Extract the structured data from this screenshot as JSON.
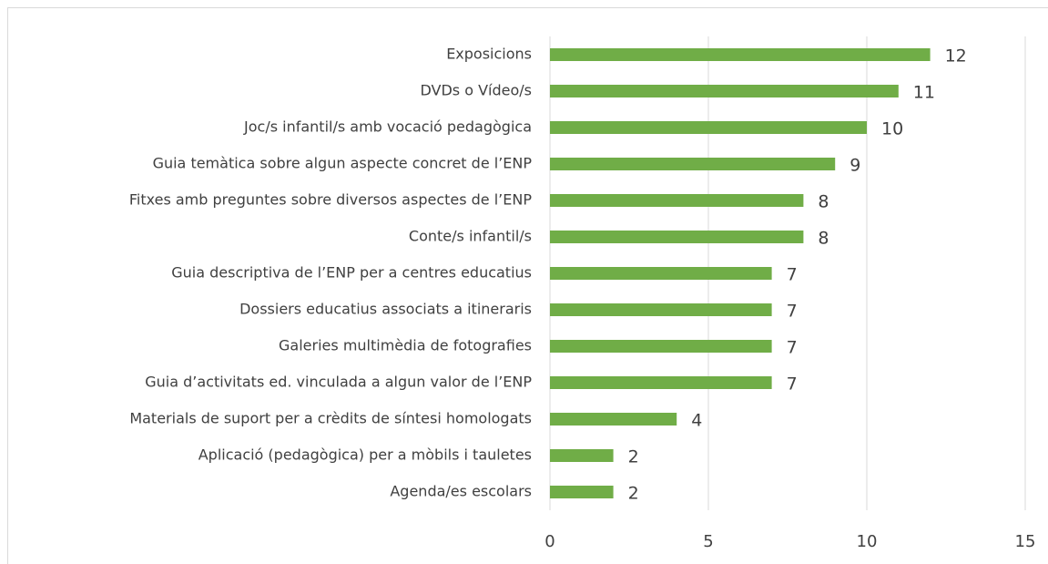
{
  "chart_data": {
    "type": "bar",
    "orientation": "horizontal",
    "categories": [
      "Exposicions",
      "DVDs o Vídeo/s",
      "Joc/s infantil/s amb vocació pedagògica",
      "Guia temàtica sobre algun aspecte concret de l’ENP",
      "Fitxes amb preguntes sobre diversos aspectes de l’ENP",
      "Conte/s infantil/s",
      "Guia descriptiva de l’ENP per a centres educatius",
      "Dossiers educatius associats a itineraris",
      "Galeries multimèdia de fotografies",
      "Guia d’activitats ed. vinculada a algun valor de l’ENP",
      "Materials de suport per a crèdits de síntesi homologats",
      "Aplicació (pedagògica) per a mòbils i tauletes",
      "Agenda/es escolars"
    ],
    "values": [
      12,
      11,
      10,
      9,
      8,
      8,
      7,
      7,
      7,
      7,
      4,
      2,
      2
    ],
    "color": "#70ad47",
    "xlim": [
      0,
      15
    ],
    "xticks": [
      0,
      5,
      10,
      15
    ],
    "grid": true
  }
}
